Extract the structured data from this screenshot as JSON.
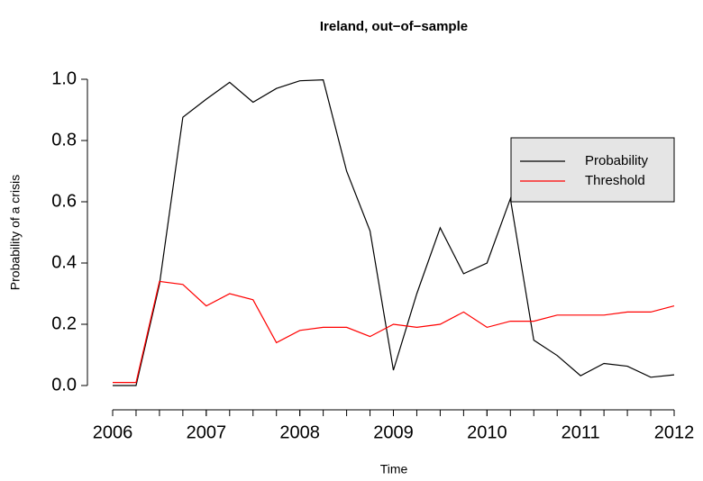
{
  "chart_data": {
    "type": "line",
    "title": "Ireland, out−of−sample",
    "xlabel": "Time",
    "ylabel": "Probability of a crisis",
    "x": [
      2006,
      2006.25,
      2006.5,
      2006.75,
      2007,
      2007.25,
      2007.5,
      2007.75,
      2008,
      2008.25,
      2008.5,
      2008.75,
      2009,
      2009.25,
      2009.5,
      2009.75,
      2010,
      2010.25,
      2010.5,
      2010.75,
      2011,
      2011.25,
      2011.5,
      2011.75,
      2012
    ],
    "series": [
      {
        "name": "Probability",
        "color": "#000000",
        "values": [
          0.0,
          0.0,
          0.33,
          0.876,
          0.935,
          0.99,
          0.925,
          0.97,
          0.995,
          0.998,
          0.7,
          0.505,
          0.05,
          0.3,
          0.515,
          0.365,
          0.4,
          0.61,
          0.148,
          0.098,
          0.032,
          0.072,
          0.063,
          0.027,
          0.035
        ]
      },
      {
        "name": "Threshold",
        "color": "#ff0000",
        "values": [
          0.01,
          0.01,
          0.34,
          0.33,
          0.26,
          0.3,
          0.28,
          0.14,
          0.18,
          0.19,
          0.19,
          0.16,
          0.2,
          0.19,
          0.2,
          0.24,
          0.19,
          0.21,
          0.21,
          0.23,
          0.23,
          0.23,
          0.24,
          0.24,
          0.26
        ]
      }
    ],
    "xlim": [
      2006,
      2012
    ],
    "xticks": [
      2006,
      2007,
      2008,
      2009,
      2010,
      2011,
      2012
    ],
    "ylim": [
      0,
      1
    ],
    "yticks": [
      {
        "value": 0,
        "label": "0.0"
      },
      0.2,
      0.4,
      0.6,
      0.8,
      {
        "value": 1,
        "label": "1.0"
      }
    ],
    "legend": "right",
    "grid": false
  }
}
